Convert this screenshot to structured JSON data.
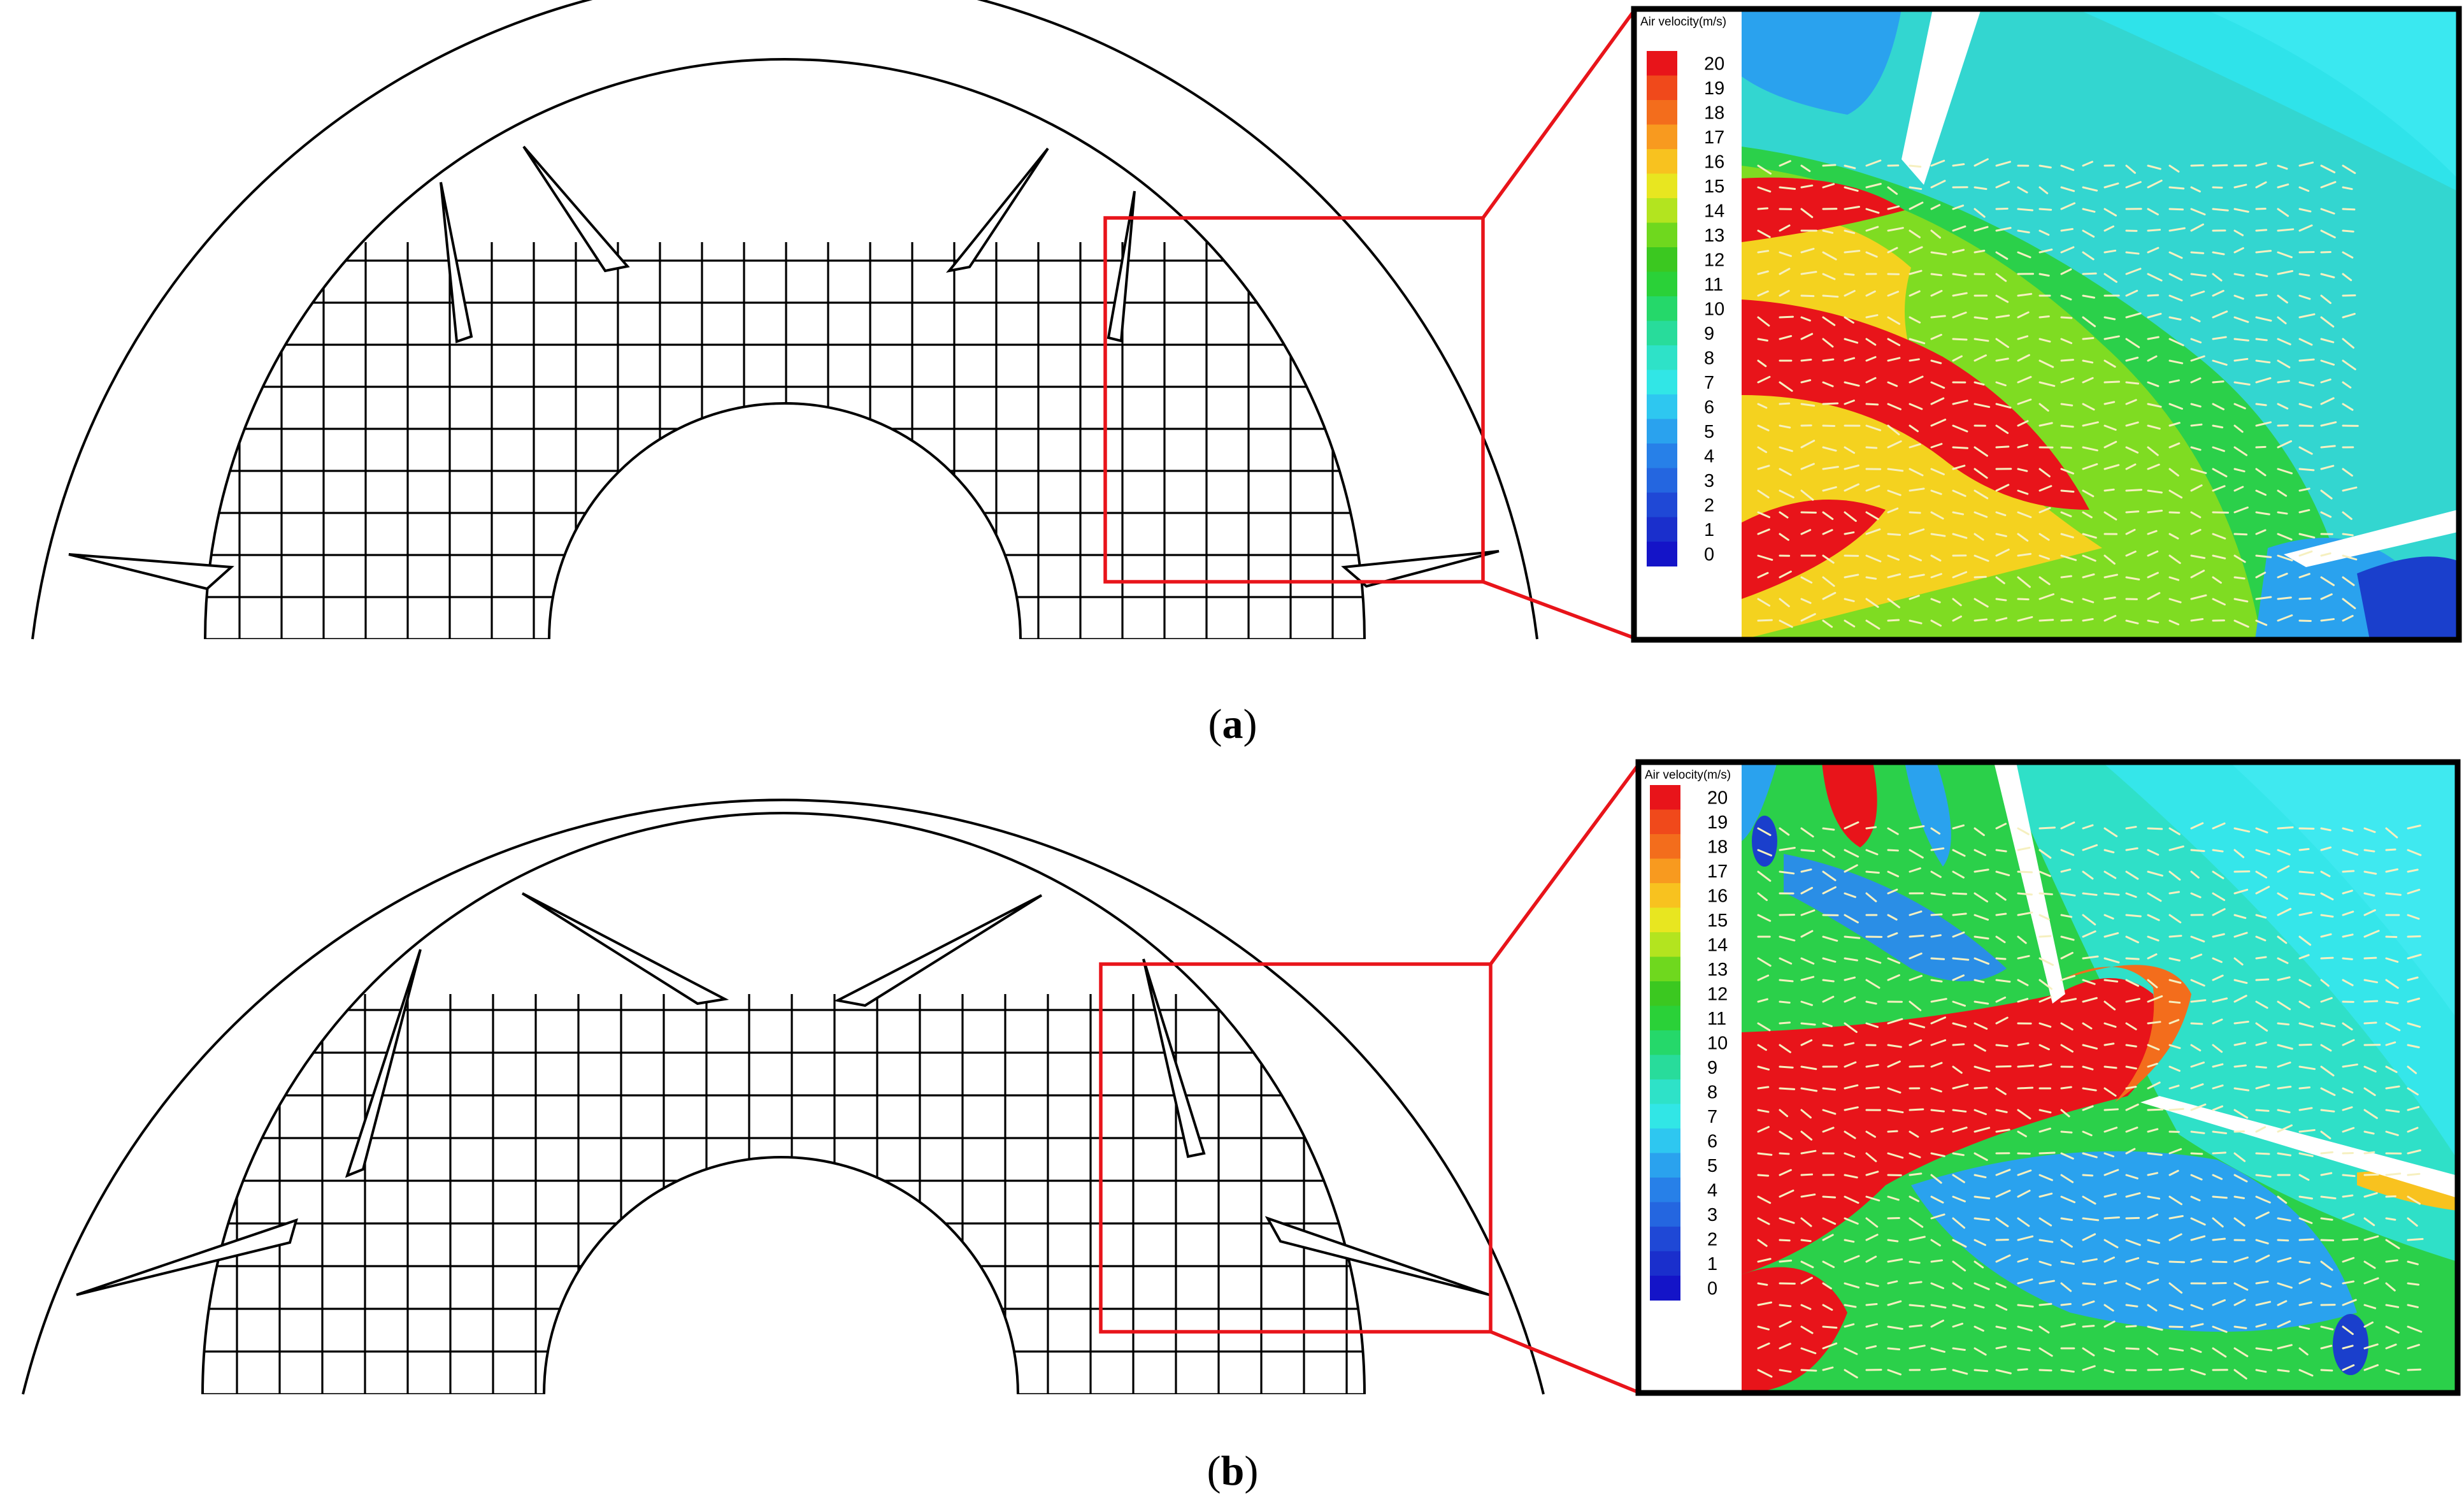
{
  "panels": [
    {
      "id": "a",
      "caption": {
        "open": "(",
        "letter": "a",
        "close": ")"
      },
      "legend": {
        "title": "Air velocity(m/s)",
        "ticks": [
          "20",
          "19",
          "18",
          "17",
          "16",
          "15",
          "14",
          "13",
          "12",
          "11",
          "10",
          "9",
          "8",
          "7",
          "6",
          "5",
          "4",
          "3",
          "2",
          "1",
          "0"
        ]
      }
    },
    {
      "id": "b",
      "caption": {
        "open": "(",
        "letter": "b",
        "close": ")"
      },
      "legend": {
        "title": "Air velocity(m/s)",
        "ticks": [
          "20",
          "19",
          "18",
          "17",
          "16",
          "15",
          "14",
          "13",
          "12",
          "11",
          "10",
          "9",
          "8",
          "7",
          "6",
          "5",
          "4",
          "3",
          "2",
          "1",
          "0"
        ]
      }
    }
  ],
  "colors": {
    "outline": "#000000",
    "zoom_box": "#e8141a",
    "inset_frame": "#000000",
    "velocity_scale": [
      "#e8141a",
      "#f0491b",
      "#f36d1c",
      "#f89a1f",
      "#f8c21f",
      "#e8e620",
      "#b3e41f",
      "#6fd81e",
      "#3bc820",
      "#2ad138",
      "#25d86a",
      "#28dc9b",
      "#2ee2c8",
      "#31e6e6",
      "#2ec7f0",
      "#2aa2ee",
      "#2780e8",
      "#2466e0",
      "#1f48d6",
      "#1a2fcc",
      "#1414c8"
    ]
  }
}
